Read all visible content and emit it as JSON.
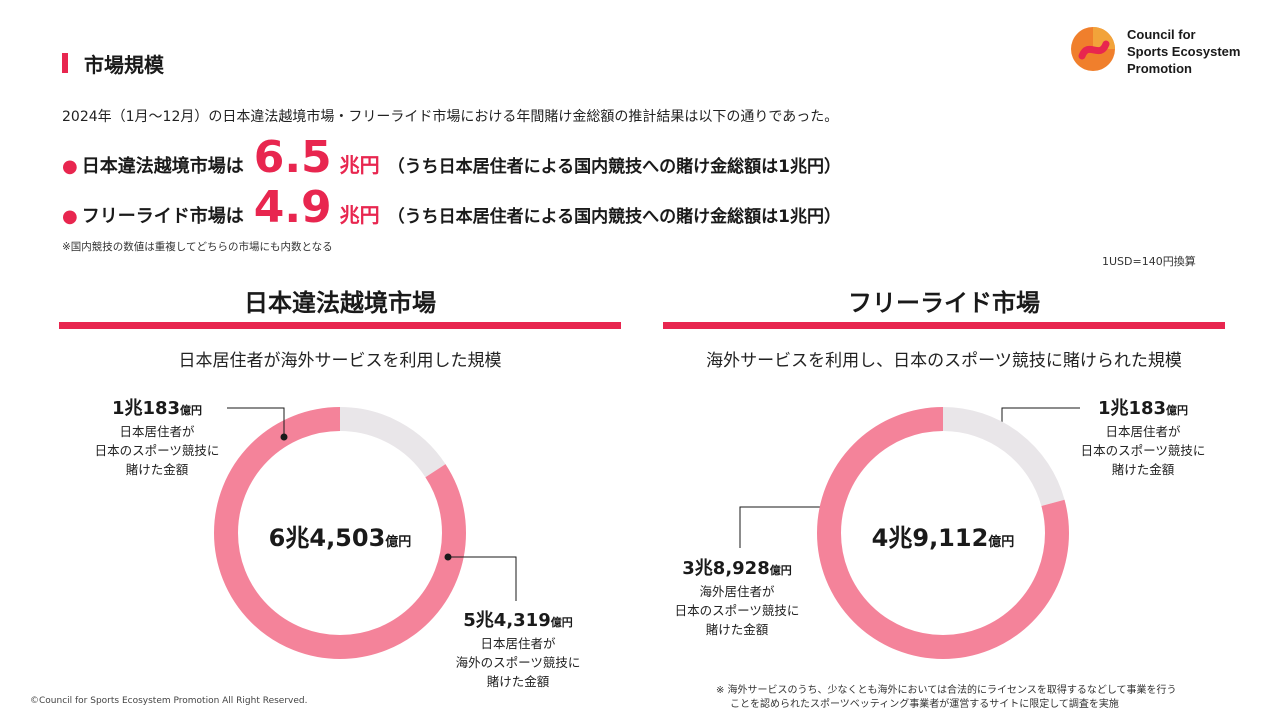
{
  "header": {
    "title": "市場規模",
    "logo_lines": [
      "Council for",
      "Sports Ecosystem",
      "Promotion"
    ]
  },
  "intro": "2024年（1月～12月）の日本違法越境市場・フリーライド市場における年間賭け金総額の推計結果は以下の通りであった。",
  "bullets": [
    {
      "label": "日本違法越境市場は",
      "value": "6.5",
      "unit": "兆円",
      "note": "（うち日本居住者による国内競技への賭け金総額は1兆円）"
    },
    {
      "label": "フリーライド市場は",
      "value": "4.9",
      "unit": "兆円",
      "note": "（うち日本居住者による国内競技への賭け金総額は1兆円）"
    }
  ],
  "footnote": "※国内競技の数値は重複してどちらの市場にも内数となる",
  "exchange": "1USD=140円換算",
  "panels": [
    {
      "title": "日本違法越境市場",
      "subtitle": "日本居住者が海外サービスを利用した規模",
      "total": {
        "n": "6兆4,503",
        "s": "億円"
      },
      "segments": [
        {
          "n": "1兆183",
          "s": "億円",
          "lines": [
            "日本居住者が",
            "日本のスポーツ競技に",
            "賭けた金額"
          ],
          "value": 10183
        },
        {
          "n": "5兆4,319",
          "s": "億円",
          "lines": [
            "日本居住者が",
            "海外のスポーツ競技に",
            "賭けた金額"
          ],
          "value": 54319
        }
      ]
    },
    {
      "title": "フリーライド市場",
      "subtitle": "海外サービスを利用し、日本のスポーツ競技に賭けられた規模",
      "total": {
        "n": "4兆9,112",
        "s": "億円"
      },
      "segments": [
        {
          "n": "1兆183",
          "s": "億円",
          "lines": [
            "日本居住者が",
            "日本のスポーツ競技に",
            "賭けた金額"
          ],
          "value": 10183
        },
        {
          "n": "3兆8,928",
          "s": "億円",
          "lines": [
            "海外居住者が",
            "日本のスポーツ競技に",
            "賭けた金額"
          ],
          "value": 38928
        }
      ]
    }
  ],
  "bottom_note": [
    "※ 海外サービスのうち、少なくとも海外においては合法的にライセンスを取得するなどして事業を行う",
    "ことを認められたスポーツベッティング事業者が運営するサイトに限定して調査を実施"
  ],
  "copyright": "©Council for Sports Ecosystem Promotion All Right Reserved.",
  "colors": {
    "accent": "#e8264f",
    "pink": "#f4839a",
    "grey": "#e9e6e9"
  }
}
